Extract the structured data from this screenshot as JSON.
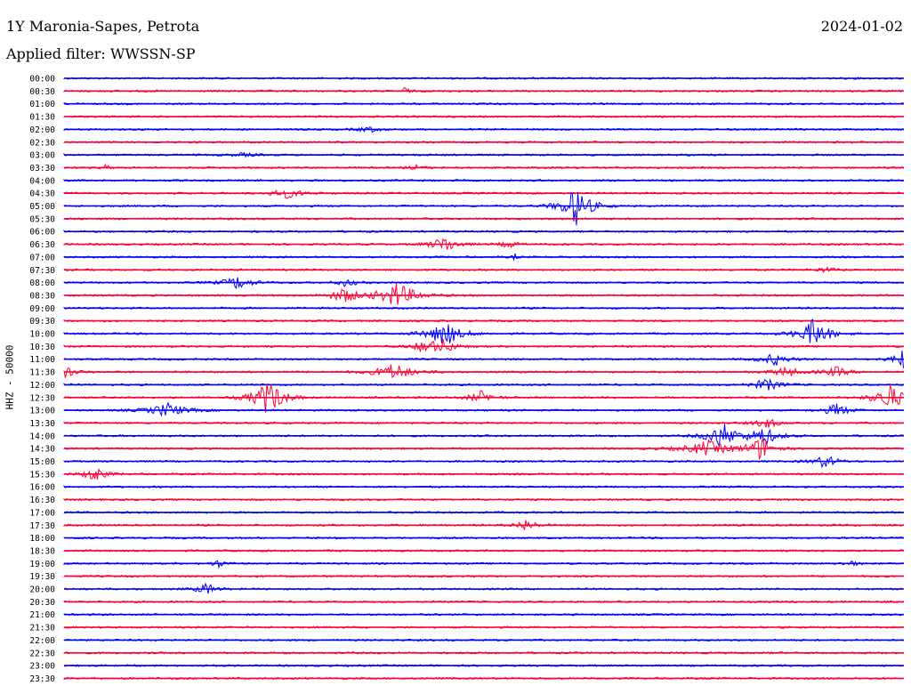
{
  "header": {
    "station": "1Y Maronia-Sapes, Petrota",
    "date": "2024-01-02",
    "filter": "Applied filter: WWSSN-SP"
  },
  "chart_data": {
    "type": "line",
    "title": "1Y Maronia-Sapes, Petrota",
    "subtitle": "Applied filter: WWSSN-SP",
    "date": "2024-01-02",
    "ylabel": "HHZ - 50000",
    "trace_labels": [
      "00:00",
      "00:30",
      "01:00",
      "01:30",
      "02:00",
      "02:30",
      "03:00",
      "03:30",
      "04:00",
      "04:30",
      "05:00",
      "05:30",
      "06:00",
      "06:30",
      "07:00",
      "07:30",
      "08:00",
      "08:30",
      "09:00",
      "09:30",
      "10:00",
      "10:30",
      "11:00",
      "11:30",
      "12:00",
      "12:30",
      "13:00",
      "13:30",
      "14:00",
      "14:30",
      "15:00",
      "15:30",
      "16:00",
      "16:30",
      "17:00",
      "17:30",
      "18:00",
      "18:30",
      "19:00",
      "19:30",
      "20:00",
      "20:30",
      "21:00",
      "21:30",
      "22:00",
      "22:30",
      "23:00",
      "23:30"
    ],
    "x_unit": "minutes into 30-minute trace",
    "x_range": [
      0,
      30
    ],
    "colors": {
      "even": "#0000ff",
      "odd": "#ff0033"
    },
    "grid": false,
    "events": [
      {
        "trace": "00:30",
        "minute": 12.2,
        "amp": 0.7,
        "dur": 0.3
      },
      {
        "trace": "02:00",
        "minute": 10.9,
        "amp": 0.35,
        "dur": 1.2
      },
      {
        "trace": "03:00",
        "minute": 6.4,
        "amp": 0.2,
        "dur": 1.5
      },
      {
        "trace": "03:30",
        "minute": 1.5,
        "amp": 0.45,
        "dur": 0.3
      },
      {
        "trace": "03:30",
        "minute": 12.6,
        "amp": 0.3,
        "dur": 0.8
      },
      {
        "trace": "04:30",
        "minute": 8.0,
        "amp": 0.6,
        "dur": 1.8
      },
      {
        "trace": "05:00",
        "minute": 18.3,
        "amp": 2.7,
        "dur": 1.5
      },
      {
        "trace": "06:30",
        "minute": 13.6,
        "amp": 1.1,
        "dur": 1.4
      },
      {
        "trace": "06:30",
        "minute": 15.9,
        "amp": 0.45,
        "dur": 1.0
      },
      {
        "trace": "07:00",
        "minute": 16.1,
        "amp": 0.4,
        "dur": 0.3
      },
      {
        "trace": "07:30",
        "minute": 27.2,
        "amp": 0.35,
        "dur": 1.0
      },
      {
        "trace": "08:00",
        "minute": 6.2,
        "amp": 0.8,
        "dur": 1.6
      },
      {
        "trace": "08:00",
        "minute": 10.1,
        "amp": 0.55,
        "dur": 1.0
      },
      {
        "trace": "08:30",
        "minute": 10.0,
        "amp": 1.0,
        "dur": 1.4
      },
      {
        "trace": "08:30",
        "minute": 11.9,
        "amp": 1.7,
        "dur": 2.0
      },
      {
        "trace": "10:00",
        "minute": 13.6,
        "amp": 1.7,
        "dur": 1.7
      },
      {
        "trace": "10:00",
        "minute": 26.8,
        "amp": 2.0,
        "dur": 1.6
      },
      {
        "trace": "10:30",
        "minute": 12.9,
        "amp": 0.9,
        "dur": 1.2
      },
      {
        "trace": "10:30",
        "minute": 13.6,
        "amp": 0.9,
        "dur": 1.2
      },
      {
        "trace": "11:00",
        "minute": 25.4,
        "amp": 0.8,
        "dur": 1.4
      },
      {
        "trace": "11:00",
        "minute": 30.0,
        "amp": 1.5,
        "dur": 1.0
      },
      {
        "trace": "11:30",
        "minute": 0.0,
        "amp": 0.8,
        "dur": 1.2
      },
      {
        "trace": "11:30",
        "minute": 11.8,
        "amp": 1.1,
        "dur": 2.0
      },
      {
        "trace": "11:30",
        "minute": 25.8,
        "amp": 0.7,
        "dur": 1.4
      },
      {
        "trace": "11:30",
        "minute": 27.6,
        "amp": 0.65,
        "dur": 1.3
      },
      {
        "trace": "12:00",
        "minute": 25.1,
        "amp": 0.8,
        "dur": 1.5
      },
      {
        "trace": "12:30",
        "minute": 7.3,
        "amp": 2.4,
        "dur": 1.6
      },
      {
        "trace": "12:30",
        "minute": 14.9,
        "amp": 0.8,
        "dur": 1.3
      },
      {
        "trace": "12:30",
        "minute": 29.5,
        "amp": 1.7,
        "dur": 1.6
      },
      {
        "trace": "13:00",
        "minute": 3.7,
        "amp": 0.9,
        "dur": 2.0
      },
      {
        "trace": "13:00",
        "minute": 27.6,
        "amp": 0.9,
        "dur": 1.2
      },
      {
        "trace": "13:30",
        "minute": 25.1,
        "amp": 0.7,
        "dur": 1.2
      },
      {
        "trace": "14:00",
        "minute": 23.5,
        "amp": 1.8,
        "dur": 1.5
      },
      {
        "trace": "14:00",
        "minute": 25.0,
        "amp": 1.2,
        "dur": 1.5
      },
      {
        "trace": "14:30",
        "minute": 23.0,
        "amp": 1.0,
        "dur": 2.5
      },
      {
        "trace": "14:30",
        "minute": 24.9,
        "amp": 1.6,
        "dur": 1.3
      },
      {
        "trace": "15:00",
        "minute": 27.2,
        "amp": 0.9,
        "dur": 1.2
      },
      {
        "trace": "15:30",
        "minute": 1.1,
        "amp": 1.2,
        "dur": 1.0
      },
      {
        "trace": "17:30",
        "minute": 16.5,
        "amp": 0.8,
        "dur": 1.1
      },
      {
        "trace": "19:00",
        "minute": 5.5,
        "amp": 0.45,
        "dur": 0.8
      },
      {
        "trace": "19:00",
        "minute": 28.1,
        "amp": 0.35,
        "dur": 0.8
      },
      {
        "trace": "20:00",
        "minute": 5.1,
        "amp": 0.8,
        "dur": 1.0
      }
    ]
  }
}
